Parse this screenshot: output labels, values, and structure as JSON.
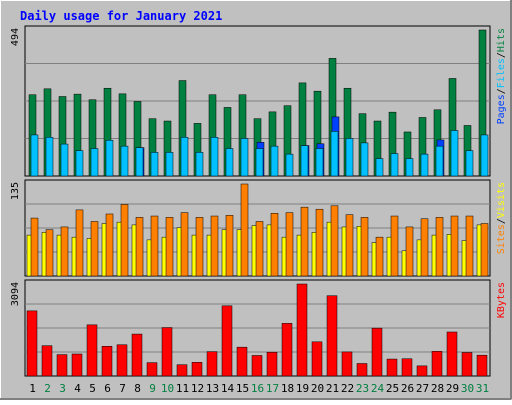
{
  "title": "Daily usage for January 2021",
  "colors": {
    "background": "#c0c0c0",
    "panel": "#c0c0c0",
    "grid": "#808080",
    "title": "#0000ff",
    "hits": "#008040",
    "files": "#00c0ff",
    "pages": "#0040ff",
    "visits": "#ffff00",
    "sites": "#ff8000",
    "kbytes": "#ff0000",
    "weekday_label": "#000000",
    "weekend_label": "#008040"
  },
  "chart_data": [
    {
      "type": "bar",
      "panel": "hits-files-pages",
      "y_max_label": "494",
      "ylim": [
        0,
        494
      ],
      "legend": [
        {
          "name": "Pages",
          "color": "#0040ff"
        },
        {
          "name": "Files",
          "color": "#00c0ff"
        },
        {
          "name": "Hits",
          "color": "#008040"
        }
      ],
      "categories": [
        "1",
        "2",
        "3",
        "4",
        "5",
        "6",
        "7",
        "8",
        "9",
        "10",
        "11",
        "12",
        "13",
        "14",
        "15",
        "16",
        "17",
        "18",
        "19",
        "20",
        "21",
        "22",
        "23",
        "24",
        "25",
        "26",
        "27",
        "28",
        "29",
        "30",
        "31"
      ],
      "series": [
        {
          "name": "Hits",
          "values": [
            275,
            295,
            269,
            277,
            258,
            297,
            278,
            252,
            194,
            186,
            323,
            178,
            275,
            232,
            275,
            194,
            217,
            238,
            315,
            287,
            398,
            297,
            211,
            186,
            216,
            149,
            198,
            224,
            330,
            171,
            494
          ]
        },
        {
          "name": "Files",
          "values": [
            139,
            131,
            108,
            86,
            93,
            121,
            101,
            96,
            80,
            80,
            131,
            80,
            131,
            93,
            127,
            93,
            101,
            74,
            103,
            93,
            151,
            127,
            112,
            59,
            76,
            59,
            74,
            101,
            154,
            86,
            139
          ]
        },
        {
          "name": "Pages",
          "values": [
            0,
            0,
            0,
            0,
            0,
            0,
            0,
            96,
            0,
            0,
            0,
            0,
            0,
            0,
            0,
            114,
            0,
            0,
            103,
            109,
            200,
            0,
            0,
            0,
            0,
            0,
            0,
            122,
            0,
            0,
            0
          ]
        }
      ]
    },
    {
      "type": "bar",
      "panel": "visits-sites",
      "y_max_label": "135",
      "ylim": [
        0,
        135
      ],
      "legend": [
        {
          "name": "Sites",
          "color": "#ff8000"
        },
        {
          "name": "Visits",
          "color": "#ffff00"
        }
      ],
      "categories": [
        "1",
        "2",
        "3",
        "4",
        "5",
        "6",
        "7",
        "8",
        "9",
        "10",
        "11",
        "12",
        "13",
        "14",
        "15",
        "16",
        "17",
        "18",
        "19",
        "20",
        "21",
        "22",
        "23",
        "24",
        "25",
        "26",
        "27",
        "28",
        "29",
        "30",
        "31"
      ],
      "series": [
        {
          "name": "Visits",
          "values": [
            60,
            64,
            60,
            57,
            55,
            77,
            79,
            75,
            53,
            57,
            71,
            60,
            60,
            68,
            68,
            74,
            75,
            57,
            60,
            64,
            79,
            72,
            73,
            49,
            57,
            37,
            53,
            60,
            61,
            52,
            75
          ]
        },
        {
          "name": "Sites",
          "values": [
            85,
            68,
            72,
            97,
            80,
            91,
            105,
            86,
            88,
            86,
            93,
            86,
            88,
            89,
            135,
            80,
            92,
            93,
            101,
            98,
            103,
            90,
            86,
            57,
            88,
            72,
            84,
            86,
            88,
            88,
            77
          ]
        }
      ]
    },
    {
      "type": "bar",
      "panel": "kbytes",
      "y_max_label": "3094",
      "ylim": [
        0,
        3094
      ],
      "legend": [
        {
          "name": "KBytes",
          "color": "#ff0000"
        }
      ],
      "categories": [
        "1",
        "2",
        "3",
        "4",
        "5",
        "6",
        "7",
        "8",
        "9",
        "10",
        "11",
        "12",
        "13",
        "14",
        "15",
        "16",
        "17",
        "18",
        "19",
        "20",
        "21",
        "22",
        "23",
        "24",
        "25",
        "26",
        "27",
        "28",
        "29",
        "30",
        "31"
      ],
      "series": [
        {
          "name": "KBytes",
          "values": [
            2190,
            1020,
            720,
            740,
            1720,
            1000,
            1050,
            1410,
            450,
            1630,
            380,
            460,
            820,
            2360,
            970,
            690,
            800,
            1770,
            3094,
            1150,
            2700,
            810,
            420,
            1610,
            570,
            580,
            340,
            830,
            1480,
            790,
            700
          ]
        }
      ]
    }
  ],
  "x_labels": {
    "days": [
      "1",
      "2",
      "3",
      "4",
      "5",
      "6",
      "7",
      "8",
      "9",
      "10",
      "11",
      "12",
      "13",
      "14",
      "15",
      "16",
      "17",
      "18",
      "19",
      "20",
      "21",
      "22",
      "23",
      "24",
      "25",
      "26",
      "27",
      "28",
      "29",
      "30",
      "31"
    ],
    "weekend": [
      2,
      3,
      9,
      10,
      16,
      17,
      23,
      24,
      30,
      31
    ]
  }
}
